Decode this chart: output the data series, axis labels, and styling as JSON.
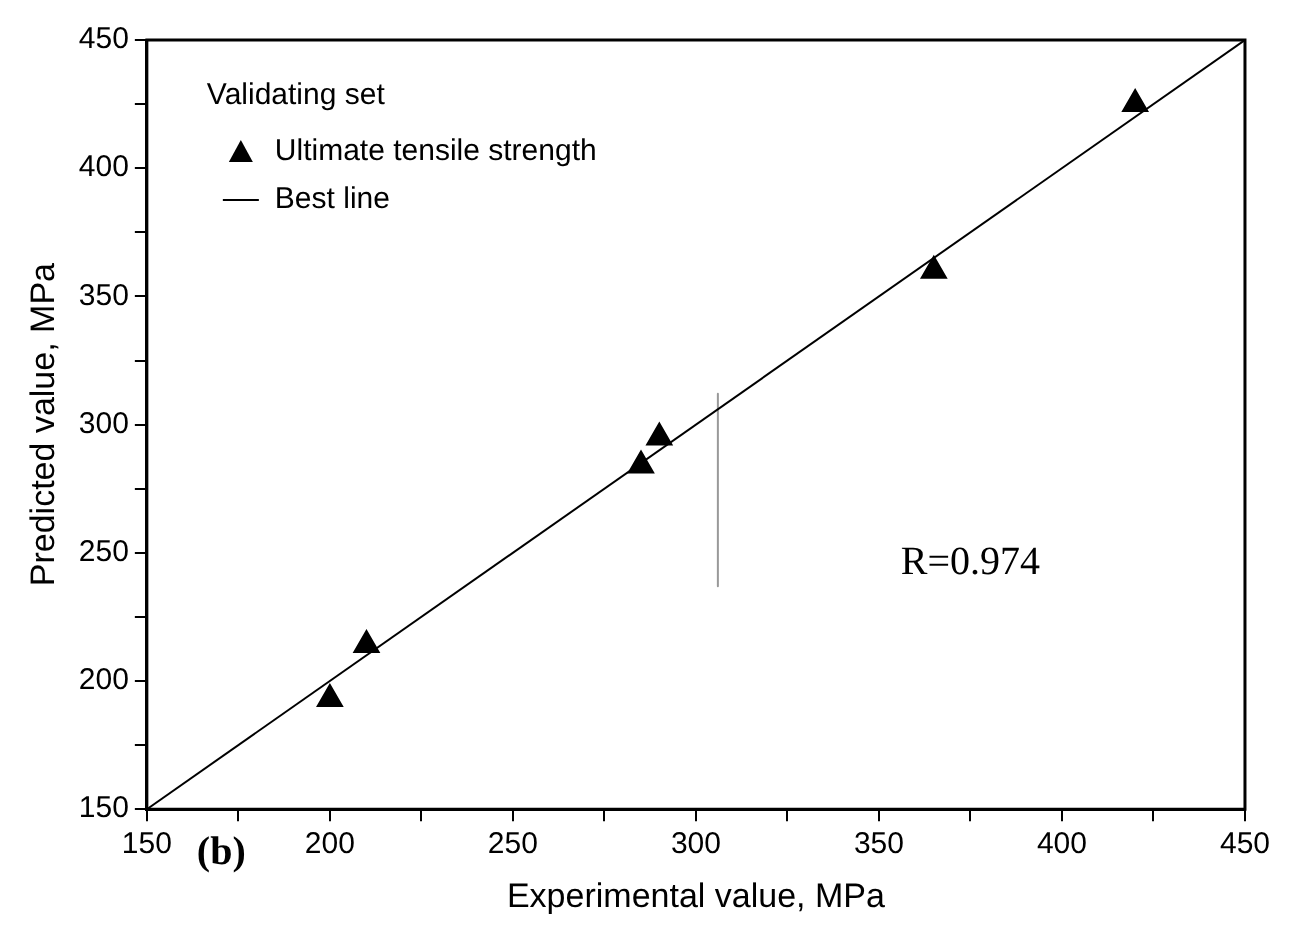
{
  "chart_data": {
    "type": "scatter",
    "xlabel": "Experimental value, MPa",
    "ylabel": "Predicted value, MPa",
    "legend_title": "Validating set",
    "xlim": [
      150,
      450
    ],
    "xticks": [
      150,
      {
        "value": 175,
        "label": null
      },
      200,
      {
        "value": 225,
        "label": null
      },
      250,
      {
        "value": 275,
        "label": null
      },
      300,
      {
        "value": 325,
        "label": null
      },
      350,
      {
        "value": 375,
        "label": null
      },
      400,
      {
        "value": 425,
        "label": null
      },
      450
    ],
    "ylim": [
      150,
      450
    ],
    "yticks": [
      150,
      {
        "value": 175,
        "label": null
      },
      200,
      {
        "value": 225,
        "label": null
      },
      250,
      {
        "value": 275,
        "label": null
      },
      300,
      {
        "value": 325,
        "label": null
      },
      350,
      {
        "value": 375,
        "label": null
      },
      400,
      {
        "value": 425,
        "label": null
      },
      450
    ],
    "legend": "top left",
    "grid": false,
    "series": [
      {
        "name": "Ultimate tensile strength",
        "color": "#000000",
        "x": [
          200,
          210,
          285,
          290,
          365,
          420
        ],
        "values": [
          193,
          214,
          284,
          295,
          360,
          425
        ],
        "marker": "triangle"
      },
      {
        "name": "Best line",
        "type": "line",
        "color": "#000000",
        "x": [
          150,
          450
        ],
        "values": [
          150,
          450
        ],
        "marker": "none"
      },
      {
        "type": "line",
        "color": "#999999",
        "x": [
          306,
          306
        ],
        "values": [
          312,
          237
        ],
        "marker": "none"
      }
    ],
    "annotations": [
      "(b)",
      "R=0.974"
    ]
  }
}
